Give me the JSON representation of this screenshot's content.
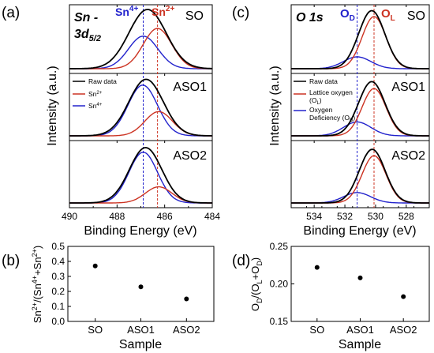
{
  "figure": {
    "panel_a_label": "(a)",
    "panel_b_label": "(b)",
    "panel_c_label": "(c)",
    "panel_d_label": "(d)"
  },
  "chart_data": [
    {
      "id": "a",
      "type": "line",
      "title_html": "Sn - 3d5/2",
      "title_line1": "Sn -",
      "title_line2_main": "3d",
      "title_line2_sub": "5/2",
      "xlabel": "Binding Energy (eV)",
      "ylabel": "Intensity (a.u.)",
      "xlim": [
        490,
        484
      ],
      "xticks": [
        490,
        488,
        486,
        484
      ],
      "xtick_labels": [
        "490",
        "488",
        "486",
        "484"
      ],
      "yticks_shown": false,
      "reference_lines": [
        {
          "x": 486.9,
          "color": "#2222cc",
          "label_main": "Sn",
          "label_sup": "4+"
        },
        {
          "x": 486.3,
          "color": "#cc3322",
          "label_main": "Sn",
          "label_sup": "2+"
        }
      ],
      "legend": {
        "placement": "top-left",
        "panel": "ASO1",
        "entries": [
          {
            "label": "Raw data",
            "label_sup": "",
            "color": "#000000"
          },
          {
            "label": "Sn",
            "label_sup": "2+",
            "color": "#cc3322"
          },
          {
            "label": "Sn",
            "label_sup": "4+",
            "color": "#2222cc"
          }
        ]
      },
      "panels": [
        {
          "name": "SO",
          "series": [
            {
              "name": "Sn4+",
              "color": "#2222cc",
              "center": 486.9,
              "height": 0.55,
              "width": 0.62
            },
            {
              "name": "Sn2+",
              "color": "#cc3322",
              "center": 486.3,
              "height": 0.68,
              "width": 0.6
            },
            {
              "name": "Raw data",
              "color": "#000000",
              "center": 486.72,
              "height": 1.0,
              "width": 0.78
            }
          ]
        },
        {
          "name": "ASO1",
          "series": [
            {
              "name": "Sn4+",
              "color": "#2222cc",
              "center": 486.92,
              "height": 0.88,
              "width": 0.62
            },
            {
              "name": "Sn2+",
              "color": "#cc3322",
              "center": 486.25,
              "height": 0.42,
              "width": 0.58
            },
            {
              "name": "Raw data",
              "color": "#000000",
              "center": 486.78,
              "height": 0.98,
              "width": 0.72
            }
          ]
        },
        {
          "name": "ASO2",
          "series": [
            {
              "name": "Sn4+",
              "color": "#2222cc",
              "center": 486.9,
              "height": 0.88,
              "width": 0.6
            },
            {
              "name": "Sn2+",
              "color": "#cc3322",
              "center": 486.25,
              "height": 0.28,
              "width": 0.56
            },
            {
              "name": "Raw data",
              "color": "#000000",
              "center": 486.8,
              "height": 0.96,
              "width": 0.68
            }
          ]
        }
      ]
    },
    {
      "id": "c",
      "type": "line",
      "title": "O 1s",
      "xlabel": "Binding Energy (eV)",
      "ylabel": "Intensity (a.u.)",
      "xlim": [
        535.5,
        526.5
      ],
      "xticks": [
        534,
        532,
        530,
        528
      ],
      "xtick_labels": [
        "534",
        "532",
        "530",
        "528"
      ],
      "yticks_shown": false,
      "reference_lines": [
        {
          "x": 531.2,
          "color": "#2222cc",
          "label_main": "O",
          "label_sub": "D"
        },
        {
          "x": 530.1,
          "color": "#cc3322",
          "label_main": "O",
          "label_sub": "L"
        }
      ],
      "legend": {
        "placement": "top-left",
        "panel": "ASO1",
        "entries": [
          {
            "label": "Raw data",
            "color": "#000000"
          },
          {
            "label": "Lattice oxygen",
            "label_line2": "(O",
            "label_line2_sub": "L",
            "label_line2_end": ")",
            "color": "#cc3322"
          },
          {
            "label": "Oxygen",
            "label_line2": "Deficiency (O",
            "label_line2_sub": "D",
            "label_line2_end": ")",
            "color": "#2222cc"
          }
        ]
      },
      "panels": [
        {
          "name": "SO",
          "series": [
            {
              "name": "OD",
              "color": "#2222cc",
              "center": 531.2,
              "height": 0.2,
              "width": 0.9
            },
            {
              "name": "OL",
              "color": "#cc3322",
              "center": 530.1,
              "height": 0.88,
              "width": 0.78
            },
            {
              "name": "Raw data",
              "color": "#000000",
              "center": 530.25,
              "height": 0.98,
              "width": 0.85
            }
          ]
        },
        {
          "name": "ASO1",
          "series": [
            {
              "name": "OD",
              "color": "#2222cc",
              "center": 531.2,
              "height": 0.24,
              "width": 0.9
            },
            {
              "name": "OL",
              "color": "#cc3322",
              "center": 530.1,
              "height": 0.82,
              "width": 0.78
            },
            {
              "name": "Raw data",
              "color": "#000000",
              "center": 530.25,
              "height": 0.94,
              "width": 0.86
            }
          ]
        },
        {
          "name": "ASO2",
          "series": [
            {
              "name": "OD",
              "color": "#2222cc",
              "center": 531.2,
              "height": 0.18,
              "width": 0.88
            },
            {
              "name": "OL",
              "color": "#cc3322",
              "center": 530.1,
              "height": 0.82,
              "width": 0.78
            },
            {
              "name": "Raw data",
              "color": "#000000",
              "center": 530.22,
              "height": 0.93,
              "width": 0.84
            }
          ]
        }
      ]
    },
    {
      "id": "b",
      "type": "scatter",
      "xlabel": "Sample",
      "ylabel_html": "Sn2+/(Sn4++Sn2+)",
      "categories": [
        "SO",
        "ASO1",
        "ASO2"
      ],
      "values": [
        0.37,
        0.23,
        0.15
      ],
      "ylim": [
        0.0,
        0.5
      ],
      "yticks": [
        0.0,
        0.1,
        0.2,
        0.3,
        0.4,
        0.5
      ],
      "ytick_labels": [
        "0.0",
        "0.1",
        "0.2",
        "0.3",
        "0.4",
        "0.5"
      ],
      "grid": false
    },
    {
      "id": "d",
      "type": "scatter",
      "xlabel": "Sample",
      "ylabel_html": "OD/(OL+OD)",
      "categories": [
        "SO",
        "ASO1",
        "ASO2"
      ],
      "values": [
        0.222,
        0.208,
        0.183
      ],
      "ylim": [
        0.15,
        0.25
      ],
      "yticks": [
        0.15,
        0.2,
        0.25
      ],
      "ytick_labels": [
        "0.15",
        "0.20",
        "0.25"
      ],
      "grid": false
    }
  ]
}
